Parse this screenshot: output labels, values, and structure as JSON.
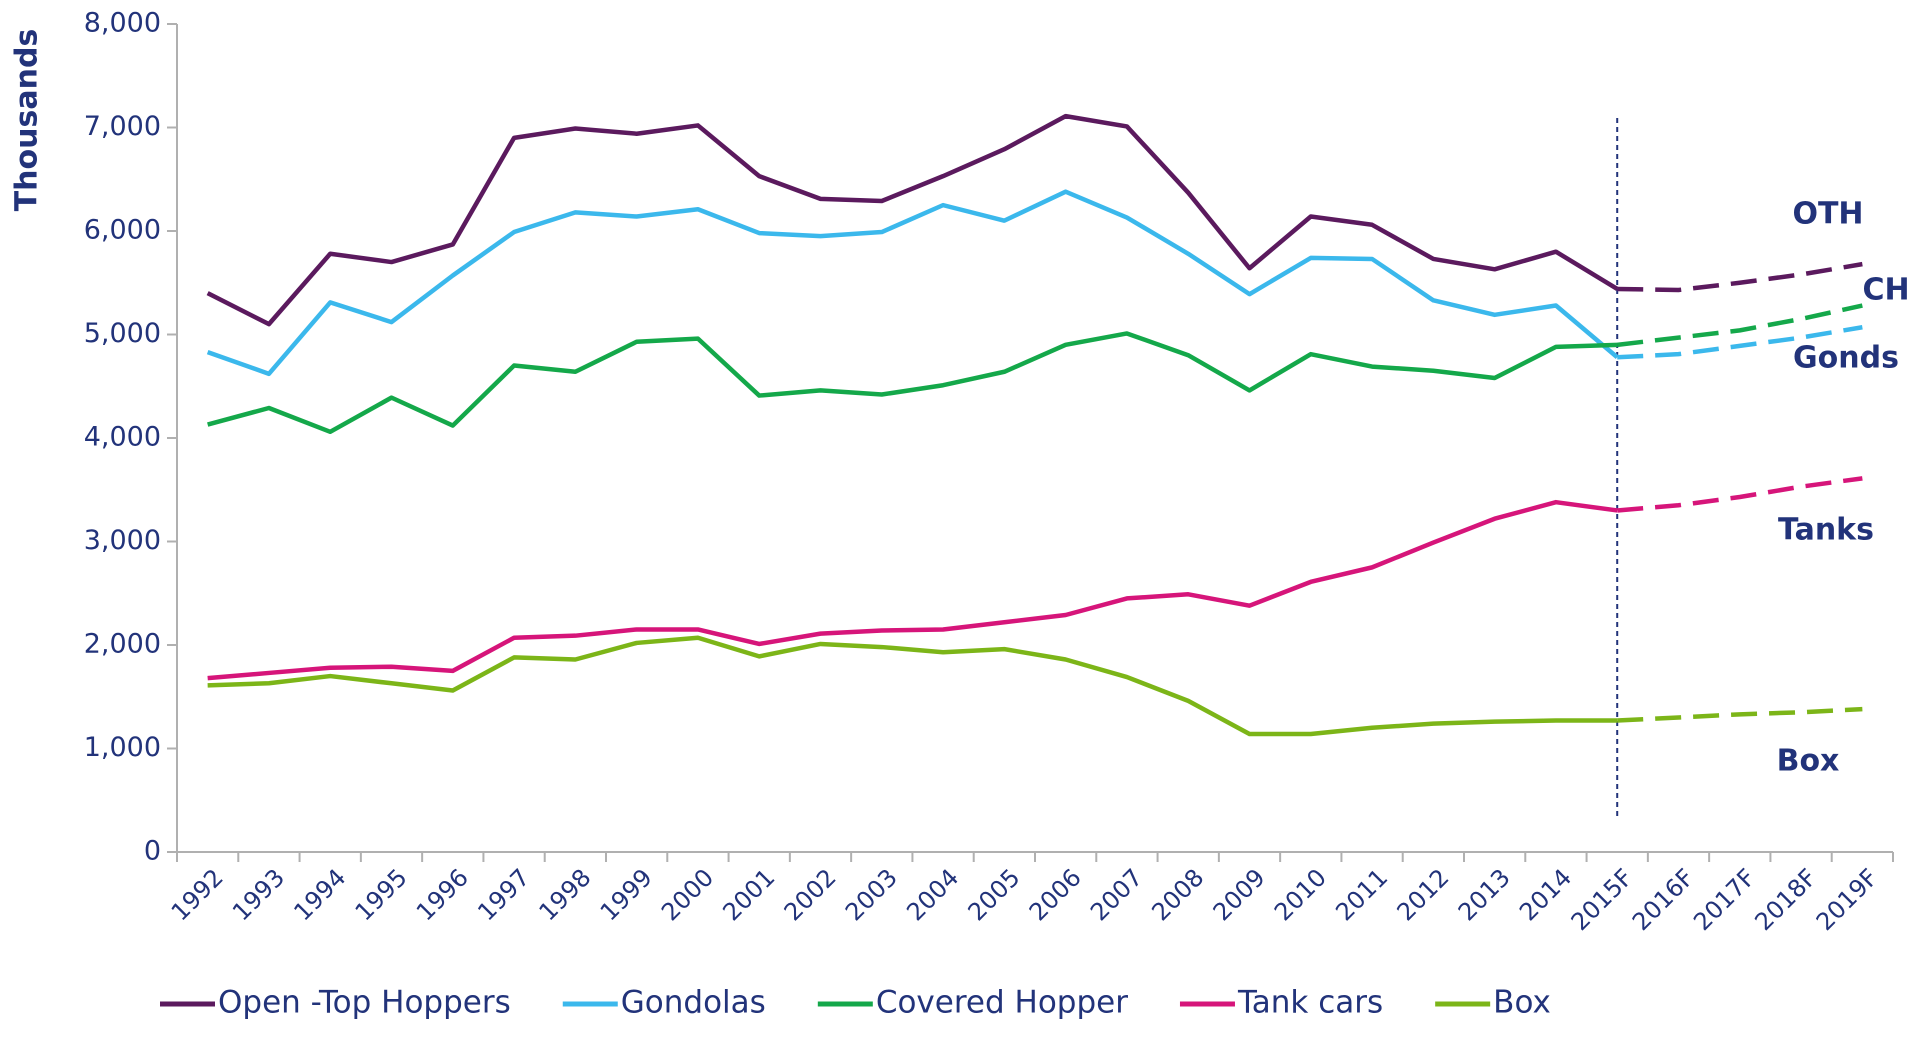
{
  "chart_data": {
    "type": "line",
    "y_label": "Thousands",
    "categories": [
      "1992",
      "1993",
      "1994",
      "1995",
      "1996",
      "1997",
      "1998",
      "1999",
      "2000",
      "2001",
      "2002",
      "2003",
      "2004",
      "2005",
      "2006",
      "2007",
      "2008",
      "2009",
      "2010",
      "2011",
      "2012",
      "2013",
      "2014",
      "2015F",
      "2016F",
      "2017F",
      "2018F",
      "2019F"
    ],
    "vline": "2015F",
    "series": [
      {
        "name": "Open -Top Hoppers",
        "color": "#5b1a5e",
        "values": [
          5400,
          5100,
          5780,
          5700,
          5870,
          6900,
          6990,
          6940,
          7020,
          6530,
          6310,
          6290,
          6530,
          6790,
          7110,
          7010,
          6370,
          5640,
          6140,
          6060,
          5730,
          5630,
          5800,
          5440,
          5430,
          5500,
          5580,
          5680
        ]
      },
      {
        "name": "Gondolas",
        "color": "#3bb8ec",
        "values": [
          4830,
          4620,
          5310,
          5120,
          5570,
          5990,
          6180,
          6140,
          6210,
          5980,
          5950,
          5990,
          6250,
          6100,
          6380,
          6130,
          5780,
          5390,
          5740,
          5730,
          5330,
          5190,
          5280,
          4780,
          4810,
          4890,
          4970,
          5070
        ]
      },
      {
        "name": "Covered Hopper",
        "color": "#14a84a",
        "values": [
          4130,
          4290,
          4060,
          4390,
          4120,
          4700,
          4640,
          4930,
          4960,
          4410,
          4460,
          4420,
          4510,
          4640,
          4900,
          5010,
          4800,
          4460,
          4810,
          4690,
          4650,
          4580,
          4880,
          4900,
          4970,
          5040,
          5150,
          5280
        ]
      },
      {
        "name": "Tank cars",
        "color": "#d6157a",
        "values": [
          1680,
          1730,
          1780,
          1790,
          1750,
          2070,
          2090,
          2150,
          2150,
          2010,
          2110,
          2140,
          2150,
          2220,
          2290,
          2450,
          2490,
          2380,
          2610,
          2750,
          2990,
          3220,
          3380,
          3300,
          3350,
          3430,
          3530,
          3610
        ]
      },
      {
        "name": "Box",
        "color": "#7cb518",
        "values": [
          1610,
          1630,
          1700,
          1630,
          1560,
          1880,
          1860,
          2020,
          2070,
          1890,
          2010,
          1980,
          1930,
          1960,
          1860,
          1690,
          1460,
          1140,
          1140,
          1200,
          1240,
          1260,
          1270,
          1270,
          1300,
          1330,
          1350,
          1380
        ]
      }
    ],
    "annotations": [
      "OTH",
      "CH",
      "Gonds",
      "Tanks",
      "Box"
    ],
    "ylim": [
      0,
      8000
    ],
    "yticks": [
      0,
      {
        "value": 1000,
        "label": "1,000"
      },
      {
        "value": 2000,
        "label": "2,000"
      },
      {
        "value": 3000,
        "label": "3,000"
      },
      {
        "value": 4000,
        "label": "4,000"
      },
      {
        "value": 5000,
        "label": "5,000"
      },
      {
        "value": 6000,
        "label": "6,000"
      },
      {
        "value": 7000,
        "label": "7,000"
      },
      {
        "value": 8000,
        "label": "8,000"
      }
    ],
    "grid": false
  }
}
